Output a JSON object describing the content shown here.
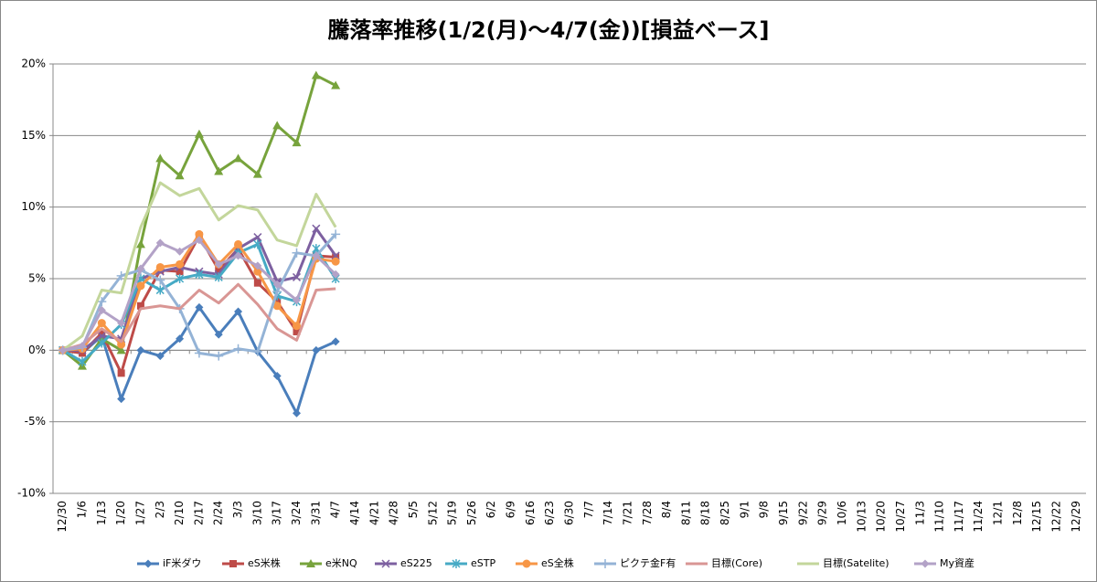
{
  "chart_data": {
    "type": "line",
    "title": "騰落率推移(1/2(月)～4/7(金))[損益ベース]",
    "categories": [
      "12/30",
      "1/6",
      "1/13",
      "1/20",
      "1/27",
      "2/3",
      "2/10",
      "2/17",
      "2/24",
      "3/3",
      "3/10",
      "3/17",
      "3/24",
      "3/31",
      "4/7",
      "4/14",
      "4/21",
      "4/28",
      "5/5",
      "5/12",
      "5/19",
      "5/26",
      "6/2",
      "6/9",
      "6/16",
      "6/23",
      "6/30",
      "7/7",
      "7/14",
      "7/21",
      "7/28",
      "8/4",
      "8/11",
      "8/18",
      "8/25",
      "9/1",
      "9/8",
      "9/15",
      "9/22",
      "9/29",
      "10/6",
      "10/13",
      "10/20",
      "10/27",
      "11/3",
      "11/10",
      "11/17",
      "11/24",
      "12/1",
      "12/8",
      "12/15",
      "12/22",
      "12/29"
    ],
    "ylim": [
      -10,
      20
    ],
    "yticks": [
      {
        "value": -10,
        "label": "-10%"
      },
      {
        "value": -5,
        "label": "-5%"
      },
      {
        "value": 0,
        "label": "0%"
      },
      {
        "value": 5,
        "label": "5%"
      },
      {
        "value": 10,
        "label": "10%"
      },
      {
        "value": 15,
        "label": "15%"
      },
      {
        "value": 20,
        "label": "20%"
      }
    ],
    "grid": true,
    "legend": "bottom",
    "series": [
      {
        "name": "iF米ダウ",
        "color": "#4a7ebb",
        "marker": "diamond",
        "values": [
          0,
          -0.2,
          1.0,
          -3.4,
          0,
          -0.4,
          0.8,
          3.0,
          1.1,
          2.7,
          -0.1,
          -1.8,
          -4.4,
          0,
          0.6,
          null,
          null,
          null,
          null,
          null,
          null,
          null,
          null,
          null,
          null,
          null,
          null,
          null,
          null,
          null,
          null,
          null,
          null,
          null,
          null,
          null,
          null,
          null,
          null,
          null,
          null,
          null,
          null,
          null,
          null,
          null,
          null,
          null,
          null,
          null,
          null,
          null,
          null
        ]
      },
      {
        "name": "eS米株",
        "color": "#be4b48",
        "marker": "square",
        "values": [
          0,
          -0.2,
          1.2,
          -1.6,
          3.1,
          5.6,
          5.5,
          8.0,
          5.6,
          7.1,
          4.7,
          3.4,
          1.3,
          6.6,
          6.5,
          null,
          null,
          null,
          null,
          null,
          null,
          null,
          null,
          null,
          null,
          null,
          null,
          null,
          null,
          null,
          null,
          null,
          null,
          null,
          null,
          null,
          null,
          null,
          null,
          null,
          null,
          null,
          null,
          null,
          null,
          null,
          null,
          null,
          null,
          null,
          null,
          null,
          null
        ]
      },
      {
        "name": "e米NQ",
        "color": "#77a33c",
        "marker": "triangle",
        "values": [
          0,
          -1.1,
          0.8,
          0,
          7.4,
          13.4,
          12.2,
          15.1,
          12.5,
          13.4,
          12.3,
          15.7,
          14.5,
          19.2,
          18.5,
          null,
          null,
          null,
          null,
          null,
          null,
          null,
          null,
          null,
          null,
          null,
          null,
          null,
          null,
          null,
          null,
          null,
          null,
          null,
          null,
          null,
          null,
          null,
          null,
          null,
          null,
          null,
          null,
          null,
          null,
          null,
          null,
          null,
          null,
          null,
          null,
          null,
          null
        ]
      },
      {
        "name": "eS225",
        "color": "#7d60a0",
        "marker": "x",
        "values": [
          0,
          0,
          1.0,
          0.8,
          5.0,
          5.5,
          5.8,
          5.5,
          5.3,
          7.1,
          7.9,
          4.8,
          5.1,
          8.5,
          6.6,
          null,
          null,
          null,
          null,
          null,
          null,
          null,
          null,
          null,
          null,
          null,
          null,
          null,
          null,
          null,
          null,
          null,
          null,
          null,
          null,
          null,
          null,
          null,
          null,
          null,
          null,
          null,
          null,
          null,
          null,
          null,
          null,
          null,
          null,
          null,
          null,
          null,
          null
        ]
      },
      {
        "name": "eSTP",
        "color": "#46aac5",
        "marker": "star",
        "values": [
          0,
          -0.8,
          0.5,
          1.8,
          5.0,
          4.2,
          5.0,
          5.3,
          5.1,
          6.8,
          7.4,
          3.8,
          3.4,
          7.1,
          5.0,
          null,
          null,
          null,
          null,
          null,
          null,
          null,
          null,
          null,
          null,
          null,
          null,
          null,
          null,
          null,
          null,
          null,
          null,
          null,
          null,
          null,
          null,
          null,
          null,
          null,
          null,
          null,
          null,
          null,
          null,
          null,
          null,
          null,
          null,
          null,
          null,
          null,
          null
        ]
      },
      {
        "name": "eS全株",
        "color": "#f79646",
        "marker": "circle",
        "values": [
          0,
          0.1,
          1.9,
          0.4,
          4.5,
          5.8,
          6.0,
          8.1,
          6.0,
          7.4,
          5.5,
          3.1,
          1.7,
          6.4,
          6.2,
          null,
          null,
          null,
          null,
          null,
          null,
          null,
          null,
          null,
          null,
          null,
          null,
          null,
          null,
          null,
          null,
          null,
          null,
          null,
          null,
          null,
          null,
          null,
          null,
          null,
          null,
          null,
          null,
          null,
          null,
          null,
          null,
          null,
          null,
          null,
          null,
          null,
          null
        ]
      },
      {
        "name": "ピクテ金F有",
        "color": "#94b3d6",
        "marker": "plus",
        "values": [
          0,
          0.2,
          3.4,
          5.2,
          5.6,
          4.9,
          2.9,
          -0.2,
          -0.4,
          0.1,
          -0.1,
          4.1,
          6.8,
          6.6,
          8.1,
          null,
          null,
          null,
          null,
          null,
          null,
          null,
          null,
          null,
          null,
          null,
          null,
          null,
          null,
          null,
          null,
          null,
          null,
          null,
          null,
          null,
          null,
          null,
          null,
          null,
          null,
          null,
          null,
          null,
          null,
          null,
          null,
          null,
          null,
          null,
          null,
          null,
          null
        ]
      },
      {
        "name": "目標(Core)",
        "color": "#d99694",
        "marker": "none",
        "values": [
          0,
          0.4,
          1.5,
          0.6,
          2.9,
          3.1,
          2.9,
          4.2,
          3.3,
          4.6,
          3.2,
          1.5,
          0.7,
          4.2,
          4.3,
          null,
          null,
          null,
          null,
          null,
          null,
          null,
          null,
          null,
          null,
          null,
          null,
          null,
          null,
          null,
          null,
          null,
          null,
          null,
          null,
          null,
          null,
          null,
          null,
          null,
          null,
          null,
          null,
          null,
          null,
          null,
          null,
          null,
          null,
          null,
          null,
          null,
          null
        ]
      },
      {
        "name": "目標(Satelite)",
        "color": "#c3d69b",
        "marker": "none",
        "values": [
          0,
          1.0,
          4.2,
          4.0,
          8.6,
          11.7,
          10.8,
          11.3,
          9.1,
          10.1,
          9.8,
          7.7,
          7.3,
          10.9,
          8.6,
          null,
          null,
          null,
          null,
          null,
          null,
          null,
          null,
          null,
          null,
          null,
          null,
          null,
          null,
          null,
          null,
          null,
          null,
          null,
          null,
          null,
          null,
          null,
          null,
          null,
          null,
          null,
          null,
          null,
          null,
          null,
          null,
          null,
          null,
          null,
          null,
          null,
          null
        ]
      },
      {
        "name": "My資産",
        "color": "#b3a2c7",
        "marker": "diamond",
        "values": [
          0,
          0.3,
          2.8,
          1.9,
          5.7,
          7.5,
          6.9,
          7.7,
          6.0,
          6.6,
          5.9,
          4.6,
          3.5,
          6.6,
          5.3,
          null,
          null,
          null,
          null,
          null,
          null,
          null,
          null,
          null,
          null,
          null,
          null,
          null,
          null,
          null,
          null,
          null,
          null,
          null,
          null,
          null,
          null,
          null,
          null,
          null,
          null,
          null,
          null,
          null,
          null,
          null,
          null,
          null,
          null,
          null,
          null,
          null,
          null
        ]
      }
    ]
  }
}
